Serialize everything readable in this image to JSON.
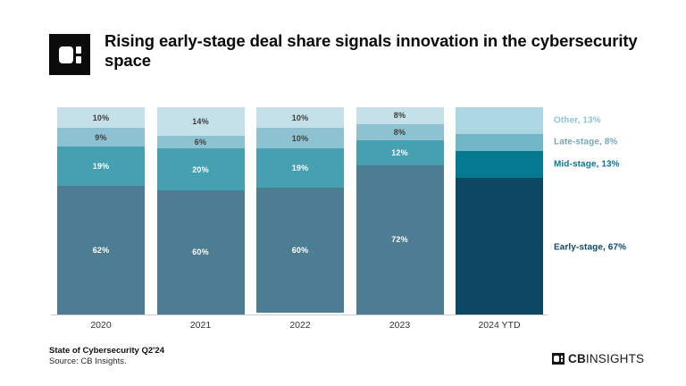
{
  "header": {
    "title": "Rising early-stage deal share signals innovation in the cybersecurity space"
  },
  "chart_data": {
    "type": "bar",
    "variant": "stacked-100-percent",
    "title": "Rising early-stage deal share signals innovation in the cybersecurity space",
    "unit": "%",
    "ylim": [
      0,
      100
    ],
    "grid": false,
    "legend_position": "right",
    "categories": [
      "2020",
      "2021",
      "2022",
      "2023",
      "2024 YTD"
    ],
    "highlight_category": "2024 YTD",
    "series": [
      {
        "name": "Early-stage",
        "values": [
          62,
          60,
          60,
          72,
          67
        ],
        "color": "#4d7d92",
        "highlight_color": "#0c4763",
        "on_bar_label_color": "#ffffff",
        "legend_label": "Early-stage, 67%",
        "legend_color": "#0e4a66"
      },
      {
        "name": "Mid-stage",
        "values": [
          19,
          20,
          19,
          12,
          13
        ],
        "color": "#45a0b2",
        "highlight_color": "#04798f",
        "on_bar_label_color": "#ffffff",
        "legend_label": "Mid-stage, 13%",
        "legend_color": "#077a91"
      },
      {
        "name": "Late-stage",
        "values": [
          9,
          6,
          10,
          8,
          8
        ],
        "color": "#8cc2d2",
        "highlight_color": "#72b7c8",
        "on_bar_label_color": "#3d3d3d",
        "legend_label": "Late-stage, 8%",
        "legend_color": "#74a9ba"
      },
      {
        "name": "Other",
        "values": [
          10,
          14,
          10,
          8,
          13
        ],
        "color": "#c4e0e9",
        "highlight_color": "#abd7e2",
        "on_bar_label_color": "#3d3d3d",
        "legend_label": "Other, 13%",
        "legend_color": "#8cc5d3"
      }
    ]
  },
  "footer": {
    "report_title": "State of Cybersecurity Q2'24",
    "source": "Source: CB Insights.",
    "wordmark_cb": "CB",
    "wordmark_insights": "INSIGHTS"
  }
}
